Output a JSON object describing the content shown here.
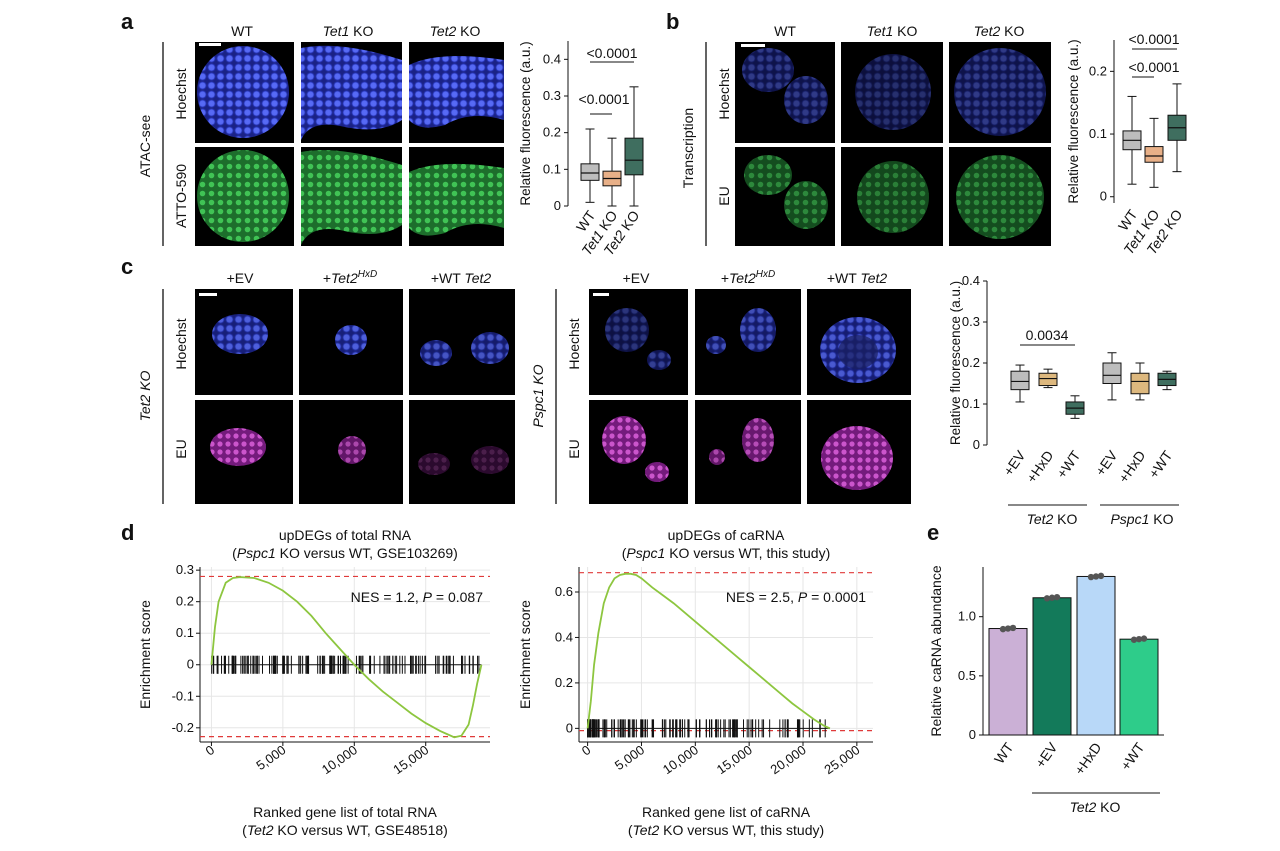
{
  "colors": {
    "wt_gray": "#bdbdbd",
    "tet1_orange": "#e8b088",
    "tet2_green": "#3f6e5f",
    "hxd_tan": "#ddb87e",
    "hoechst_blue": "#3d4fd8",
    "eu_green": "#3cb44b",
    "eu_magenta": "#c040c0",
    "gsea_line": "#8dc63f",
    "ref_red": "#e03a3a",
    "bar_wt": "#cbb0d6",
    "bar_ev": "#137a5a",
    "bar_hxd": "#b8d8f8",
    "bar_wtTet2": "#2ecc8a"
  },
  "panels": {
    "a": {
      "label": "a",
      "columns": [
        "WT",
        "Tet1 KO",
        "Tet2 KO"
      ],
      "column_parts": [
        [
          "WT",
          ""
        ],
        [
          "Tet1",
          " KO"
        ],
        [
          "Tet2",
          " KO"
        ]
      ],
      "side_label": "ATAC-see",
      "row_labels": [
        "Hoechst",
        "ATTO-590"
      ]
    },
    "b": {
      "label": "b",
      "columns": [
        "WT",
        "Tet1 KO",
        "Tet2 KO"
      ],
      "column_parts": [
        [
          "WT",
          ""
        ],
        [
          "Tet1",
          " KO"
        ],
        [
          "Tet2",
          " KO"
        ]
      ],
      "side_label": "Transcription",
      "row_labels": [
        "Hoechst",
        "EU"
      ]
    },
    "c": {
      "label": "c",
      "columns": [
        "+EV",
        "+Tet2HxD",
        "+WT Tet2"
      ],
      "left_side": "Tet2 KO",
      "right_side": "Pspc1 KO",
      "row_labels": [
        "Hoechst",
        "EU"
      ]
    },
    "d": {
      "label": "d"
    },
    "e": {
      "label": "e"
    }
  },
  "chart_data": [
    {
      "id": "a_box",
      "type": "box",
      "ylabel": "Relative fluorescence (a.u.)",
      "ylim": [
        0,
        0.45
      ],
      "yticks": [
        "0",
        "0.1",
        "0.2",
        "0.3",
        "0.4"
      ],
      "categories": [
        "WT",
        "Tet1 KO",
        "Tet2 KO"
      ],
      "boxes": [
        {
          "name": "WT",
          "whislo": 0.01,
          "q1": 0.07,
          "med": 0.09,
          "q3": 0.115,
          "whishi": 0.21
        },
        {
          "name": "Tet1 KO",
          "whislo": 0.0,
          "q1": 0.055,
          "med": 0.075,
          "q3": 0.095,
          "whishi": 0.185
        },
        {
          "name": "Tet2 KO",
          "whislo": 0.0,
          "q1": 0.085,
          "med": 0.125,
          "q3": 0.185,
          "whishi": 0.325
        }
      ],
      "annotations": [
        "<0.0001",
        "<0.0001"
      ]
    },
    {
      "id": "b_box",
      "type": "box",
      "ylabel": "Relative fluorescence (a.u.)",
      "ylim": [
        -0.01,
        0.25
      ],
      "yticks": [
        "0",
        "0.1",
        "0.2"
      ],
      "categories": [
        "WT",
        "Tet1 KO",
        "Tet2 KO"
      ],
      "boxes": [
        {
          "name": "WT",
          "whislo": 0.02,
          "q1": 0.075,
          "med": 0.09,
          "q3": 0.105,
          "whishi": 0.16
        },
        {
          "name": "Tet1 KO",
          "whislo": 0.015,
          "q1": 0.055,
          "med": 0.065,
          "q3": 0.08,
          "whishi": 0.125
        },
        {
          "name": "Tet2 KO",
          "whislo": 0.04,
          "q1": 0.09,
          "med": 0.11,
          "q3": 0.13,
          "whishi": 0.18
        }
      ],
      "annotations": [
        "<0.0001",
        "<0.0001"
      ]
    },
    {
      "id": "c_box",
      "type": "box",
      "ylabel": "Relative fluorescence (a.u.)",
      "ylim": [
        0,
        0.4
      ],
      "yticks": [
        "0",
        "0.1",
        "0.2",
        "0.3",
        "0.4"
      ],
      "categories": [
        "+EV",
        "+HxD",
        "+WT",
        "+EV",
        "+HxD",
        "+WT"
      ],
      "groups": [
        "Tet2 KO",
        "Pspc1 KO"
      ],
      "boxes": [
        {
          "name": "+EV",
          "whislo": 0.105,
          "q1": 0.135,
          "med": 0.155,
          "q3": 0.18,
          "whishi": 0.195
        },
        {
          "name": "+HxD",
          "whislo": 0.14,
          "q1": 0.145,
          "med": 0.162,
          "q3": 0.175,
          "whishi": 0.185
        },
        {
          "name": "+WT",
          "whislo": 0.065,
          "q1": 0.075,
          "med": 0.09,
          "q3": 0.105,
          "whishi": 0.12
        },
        {
          "name": "+EV",
          "whislo": 0.11,
          "q1": 0.15,
          "med": 0.17,
          "q3": 0.2,
          "whishi": 0.225
        },
        {
          "name": "+HxD",
          "whislo": 0.11,
          "q1": 0.125,
          "med": 0.155,
          "q3": 0.175,
          "whishi": 0.2
        },
        {
          "name": "+WT",
          "whislo": 0.135,
          "q1": 0.145,
          "med": 0.16,
          "q3": 0.175,
          "whishi": 0.18
        }
      ],
      "annotations": [
        "0.0034"
      ]
    },
    {
      "id": "d_left",
      "type": "line",
      "title": [
        "upDEGs of total RNA",
        "(Pspc1 KO versus WT, GSE103269)"
      ],
      "xlabel": [
        "Ranked gene list of total RNA",
        "(Tet2 KO versus WT, GSE48518)"
      ],
      "ylabel": "Enrichment score",
      "xlim": [
        -800,
        19500
      ],
      "ylim": [
        -0.245,
        0.31
      ],
      "xticks": [
        "0",
        "5,000",
        "10,000",
        "15,000"
      ],
      "yticks": [
        "-0.2",
        "-0.1",
        "0",
        "0.1",
        "0.2",
        "0.3"
      ],
      "annotation": "NES = 1.2, P = 0.087",
      "x": [
        0,
        250,
        500,
        1000,
        1500,
        2000,
        3000,
        4000,
        5000,
        6000,
        7000,
        8000,
        9000,
        10000,
        11000,
        12000,
        13000,
        14000,
        15000,
        16000,
        16500,
        17000,
        17500,
        18000,
        18300,
        18600,
        18900
      ],
      "y": [
        0,
        0.12,
        0.2,
        0.26,
        0.275,
        0.278,
        0.275,
        0.26,
        0.235,
        0.2,
        0.155,
        0.1,
        0.05,
        0.0,
        -0.045,
        -0.085,
        -0.12,
        -0.155,
        -0.185,
        -0.21,
        -0.22,
        -0.23,
        -0.225,
        -0.19,
        -0.13,
        -0.06,
        0.0
      ],
      "ref_lines": [
        0.28,
        -0.228
      ]
    },
    {
      "id": "d_right",
      "type": "line",
      "title": [
        "upDEGs of caRNA",
        "(Pspc1 KO versus WT, this study)"
      ],
      "xlabel": [
        "Ranked gene list of caRNA",
        "(Tet2 KO versus WT, this study)"
      ],
      "ylabel": "Enrichment score",
      "xlim": [
        -800,
        26500
      ],
      "ylim": [
        -0.06,
        0.71
      ],
      "xticks": [
        "0",
        "5,000",
        "10,000",
        "15,000",
        "20,000",
        "25,000"
      ],
      "yticks": [
        "0",
        "0.2",
        "0.4",
        "0.6"
      ],
      "annotation": "NES = 2.5, P = 0.0001",
      "x": [
        0,
        300,
        600,
        1000,
        1500,
        2000,
        2500,
        3000,
        3500,
        4000,
        4500,
        5000,
        6000,
        7000,
        8000,
        9000,
        10000,
        11000,
        12000,
        13000,
        14000,
        15000,
        16000,
        17000,
        18000,
        19000,
        20000,
        21000,
        22000,
        22500
      ],
      "y": [
        0,
        0.12,
        0.28,
        0.42,
        0.55,
        0.62,
        0.66,
        0.675,
        0.68,
        0.68,
        0.675,
        0.66,
        0.62,
        0.585,
        0.55,
        0.51,
        0.47,
        0.43,
        0.39,
        0.35,
        0.31,
        0.27,
        0.23,
        0.19,
        0.15,
        0.11,
        0.075,
        0.04,
        0.01,
        0.0
      ],
      "ref_lines": [
        0.685,
        -0.01
      ]
    },
    {
      "id": "e_bar",
      "type": "bar",
      "ylabel": "Relative caRNA abundance",
      "ylim": [
        0,
        1.42
      ],
      "yticks": [
        "0",
        "0.5",
        "1.0"
      ],
      "categories": [
        "WT",
        "+EV",
        "+HxD",
        "+WT"
      ],
      "values": [
        0.9,
        1.16,
        1.34,
        0.81
      ],
      "group": "Tet2 KO"
    }
  ]
}
